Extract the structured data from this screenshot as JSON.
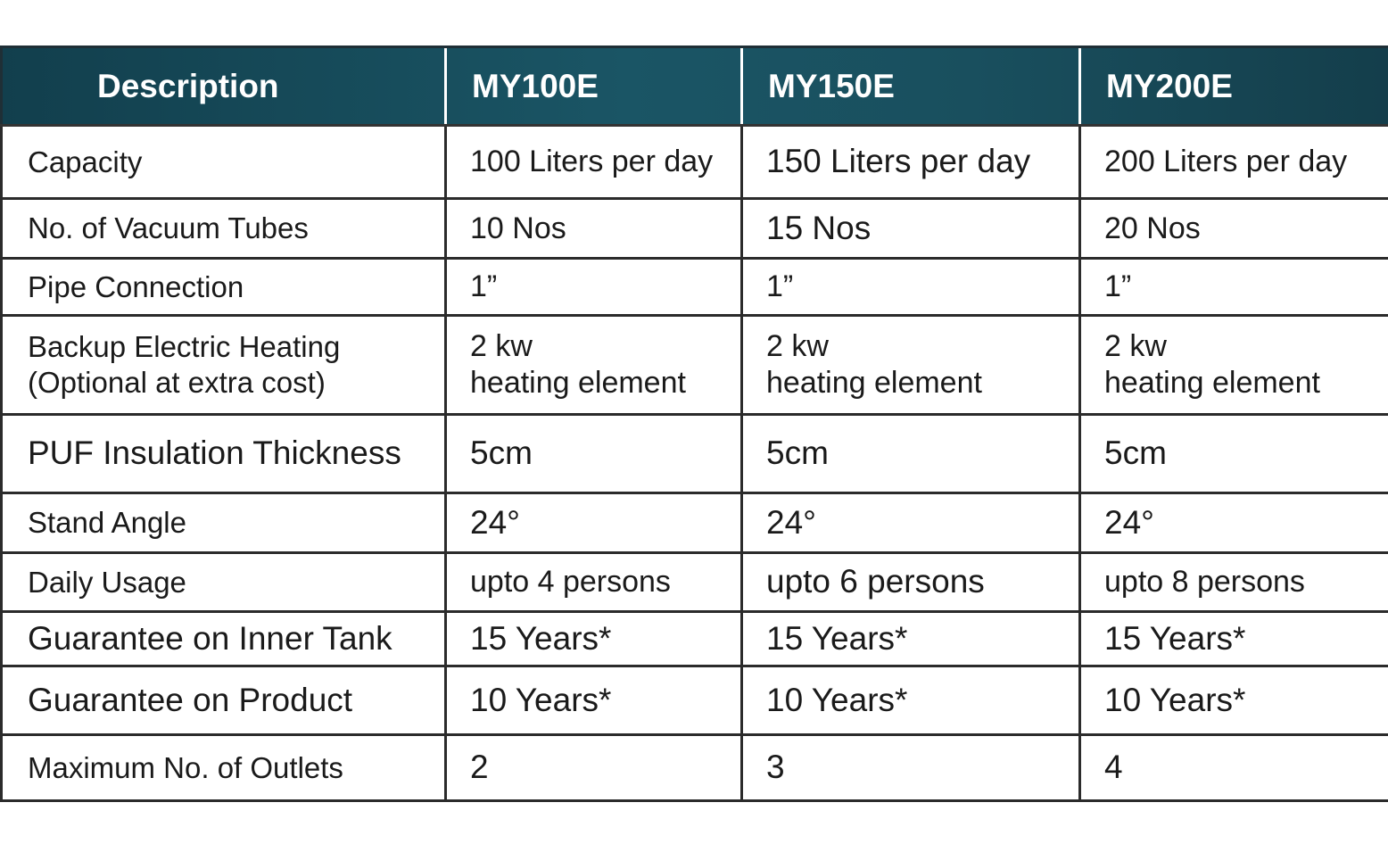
{
  "table": {
    "headers": [
      "Description",
      "MY100E",
      "MY150E",
      "MY200E"
    ],
    "rows": [
      {
        "label": [
          "Capacity"
        ],
        "values": [
          [
            "100 Liters per day"
          ],
          [
            "150 Liters per day"
          ],
          [
            "200 Liters per day"
          ]
        ]
      },
      {
        "label": [
          "No. of Vacuum Tubes"
        ],
        "values": [
          [
            "10 Nos"
          ],
          [
            "15 Nos"
          ],
          [
            "20 Nos"
          ]
        ]
      },
      {
        "label": [
          "Pipe Connection"
        ],
        "values": [
          [
            "1”"
          ],
          [
            "1”"
          ],
          [
            "1”"
          ]
        ]
      },
      {
        "label": [
          "Backup Electric Heating",
          "(Optional at extra cost)"
        ],
        "values": [
          [
            "2 kw",
            "heating element"
          ],
          [
            "2 kw",
            "heating element"
          ],
          [
            "2 kw",
            "heating element"
          ]
        ]
      },
      {
        "label": [
          "PUF Insulation Thickness"
        ],
        "values": [
          [
            "5cm"
          ],
          [
            "5cm"
          ],
          [
            "5cm"
          ]
        ]
      },
      {
        "label": [
          "Stand Angle"
        ],
        "values": [
          [
            "24°"
          ],
          [
            "24°"
          ],
          [
            "24°"
          ]
        ]
      },
      {
        "label": [
          "Daily Usage"
        ],
        "values": [
          [
            "upto 4 persons"
          ],
          [
            "upto 6 persons"
          ],
          [
            "upto 8 persons"
          ]
        ]
      },
      {
        "label": [
          "Guarantee on Inner Tank"
        ],
        "values": [
          [
            "15 Years*"
          ],
          [
            "15 Years*"
          ],
          [
            "15 Years*"
          ]
        ]
      },
      {
        "label": [
          "Guarantee on Product"
        ],
        "values": [
          [
            "10 Years*"
          ],
          [
            "10 Years*"
          ],
          [
            "10 Years*"
          ]
        ]
      },
      {
        "label": [
          "Maximum No. of Outlets"
        ],
        "values": [
          [
            "2"
          ],
          [
            "3"
          ],
          [
            "4"
          ]
        ]
      }
    ]
  },
  "colors": {
    "header_bg": "#1a5565",
    "header_text": "#ffffff",
    "border": "#2b2b2b"
  }
}
